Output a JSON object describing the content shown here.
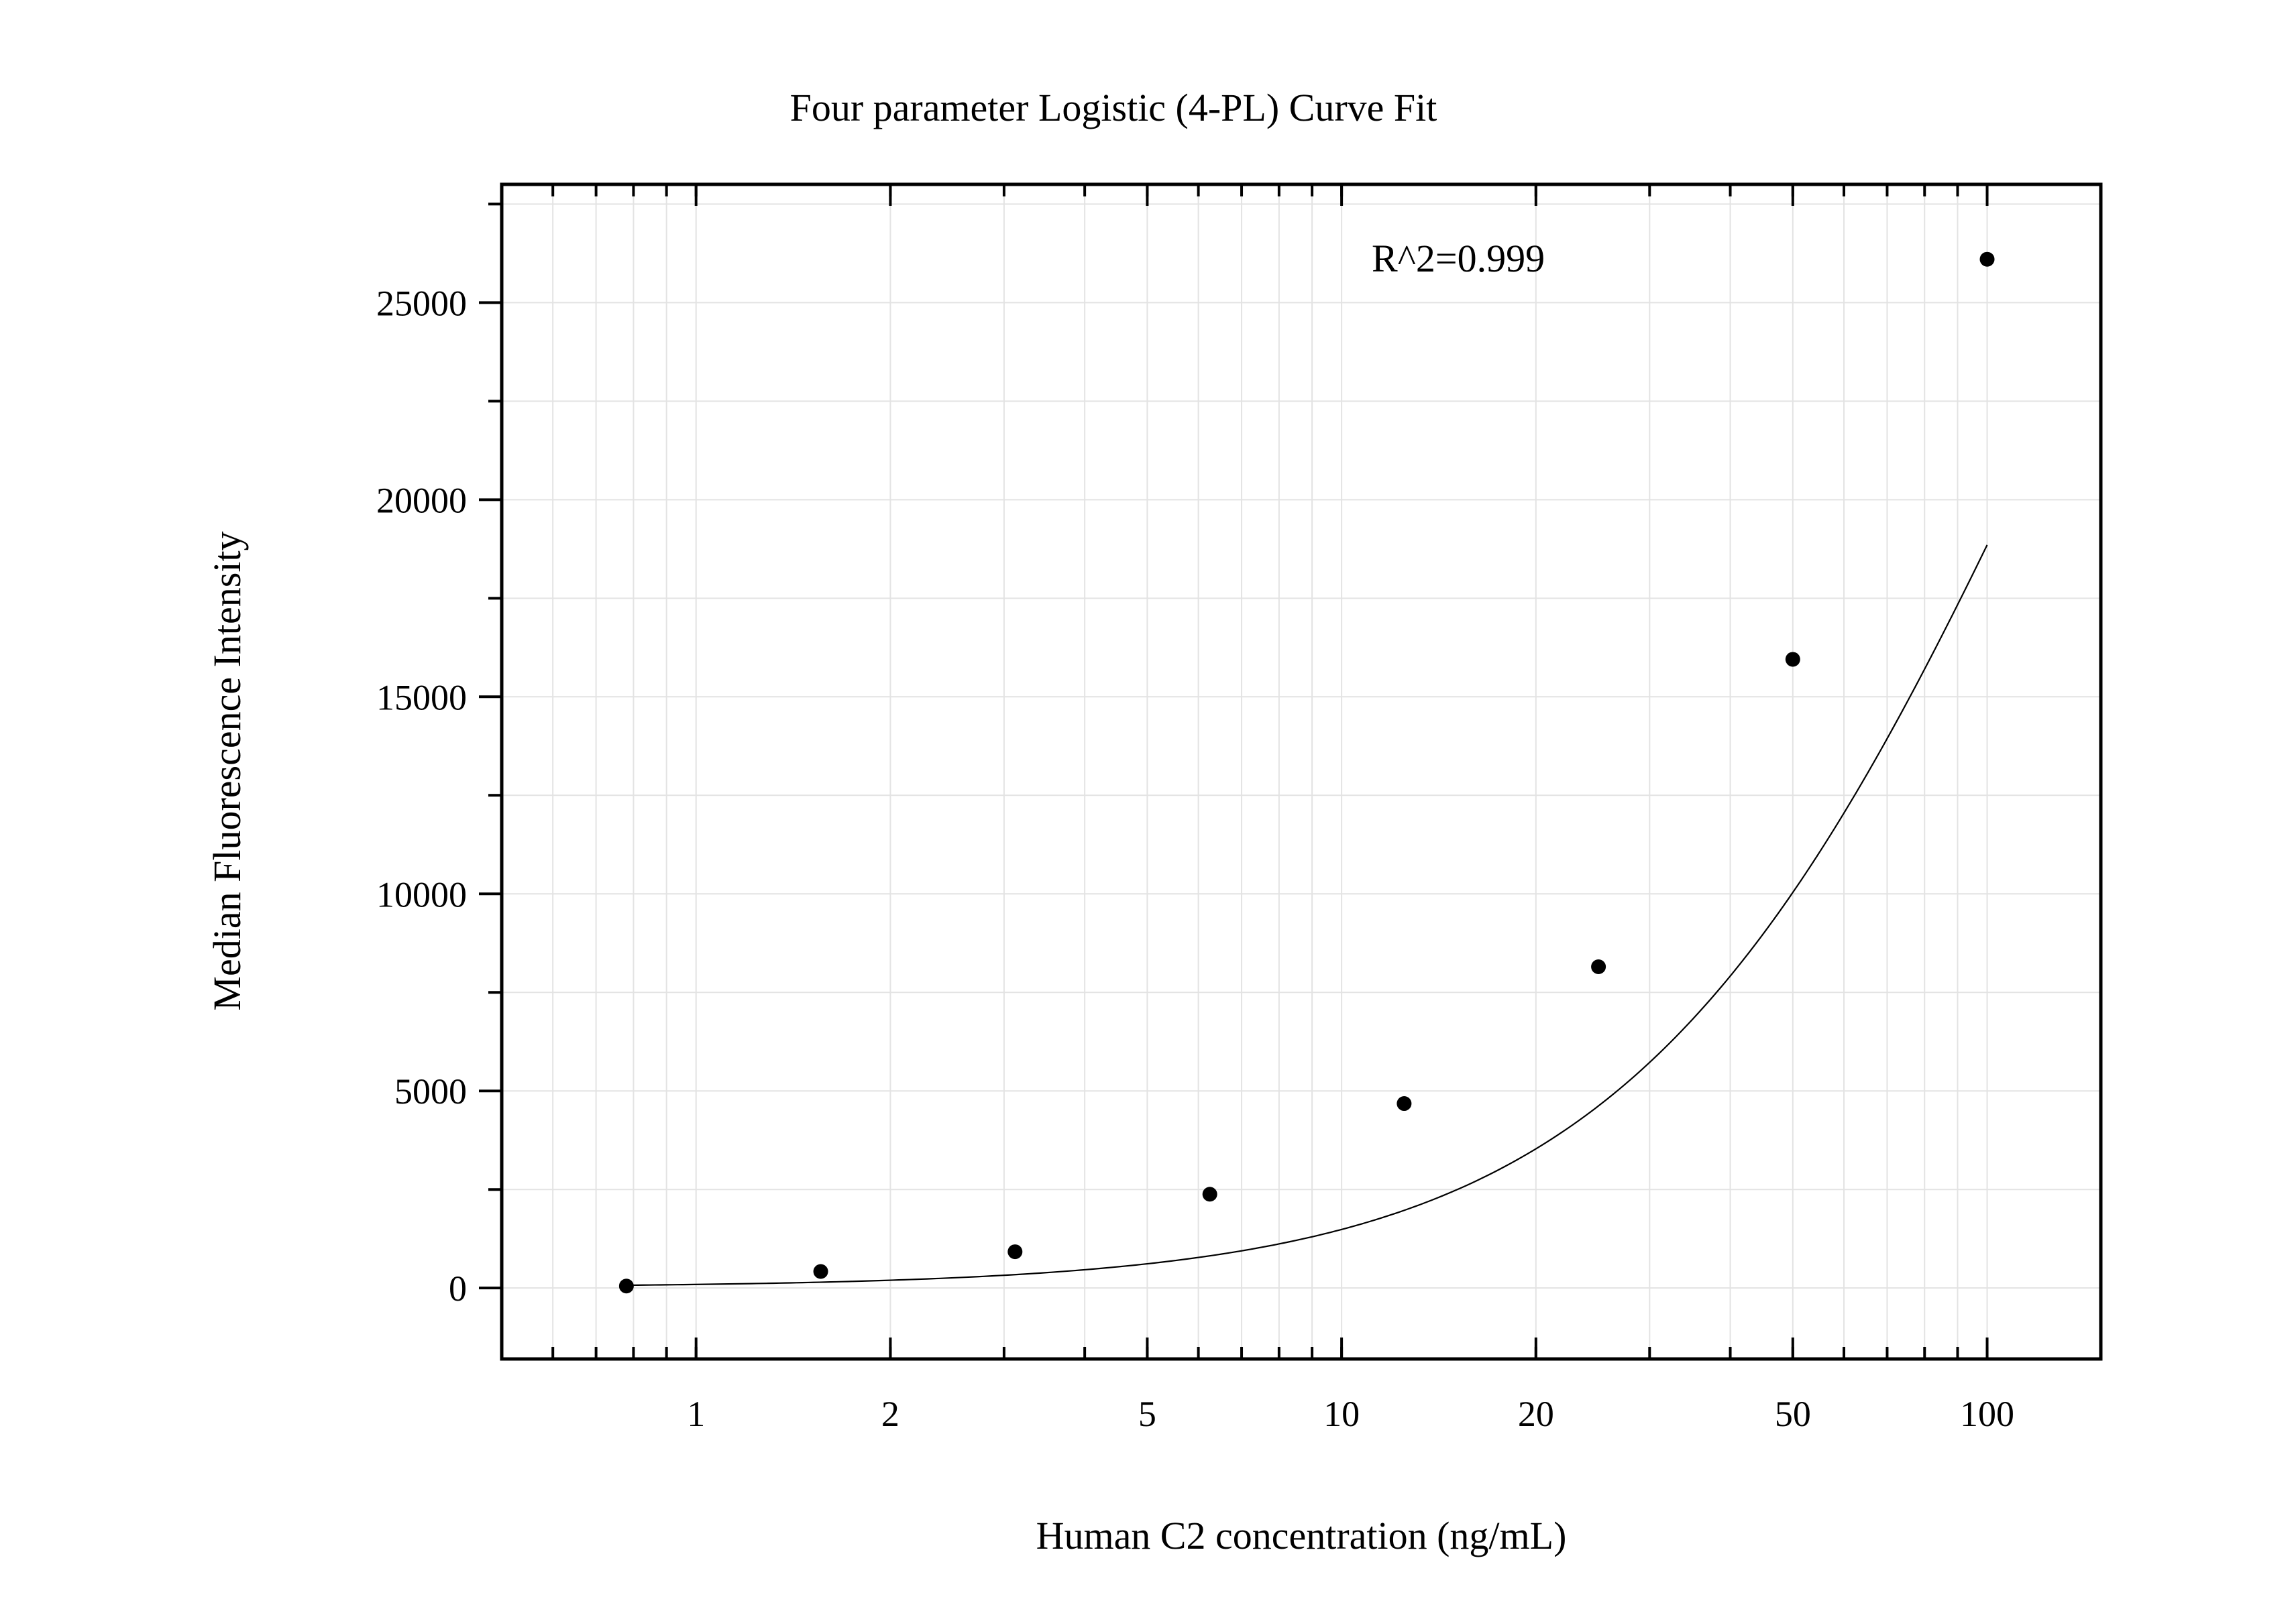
{
  "chart_data": {
    "type": "scatter",
    "title": "Four parameter Logistic (4-PL) Curve Fit",
    "xlabel": "Human C2 concentration (ng/mL)",
    "ylabel": "Median Fluorescence Intensity",
    "annotation": "R^2=0.999",
    "x_scale": "log",
    "xlim": [
      0.5,
      150
    ],
    "ylim": [
      -1800,
      28000
    ],
    "x_ticks": [
      1,
      2,
      5,
      10,
      20,
      50,
      100
    ],
    "x_tick_labels": [
      "1",
      "2",
      "5",
      "10",
      "20",
      "50",
      "100"
    ],
    "y_ticks": [
      0,
      5000,
      10000,
      15000,
      20000,
      25000
    ],
    "y_tick_labels": [
      "0",
      "5000",
      "10000",
      "15000",
      "20000",
      "25000"
    ],
    "grid": true,
    "legend": "none",
    "series": [
      {
        "kind": "points",
        "x": [
          0.78,
          1.56,
          3.12,
          6.25,
          12.5,
          25,
          50,
          100
        ],
        "y": [
          50,
          420,
          920,
          2380,
          4680,
          8150,
          15950,
          26100
        ]
      },
      {
        "kind": "fit-curve",
        "model": "4PL",
        "params": {
          "A": 20,
          "B": 1.33,
          "C": 128,
          "D": 45000
        },
        "x_range": [
          0.78,
          100
        ]
      }
    ],
    "colors": {
      "points": "#000000",
      "curve": "#000000",
      "grid": "#e3e3e3"
    }
  }
}
